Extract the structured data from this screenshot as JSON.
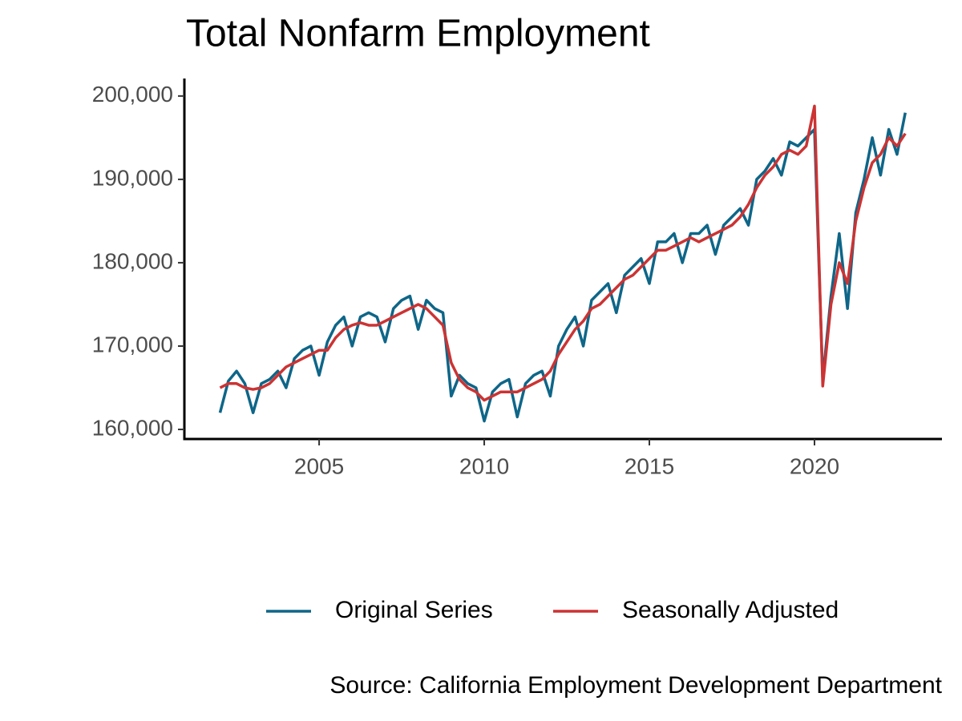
{
  "chart_data": {
    "type": "line",
    "title": "Total Nonfarm Employment",
    "caption": "Source: California Employment Development Department",
    "legend": "bottom",
    "xlim": [
      2000.92,
      2023.86
    ],
    "ylim": [
      158850,
      202100
    ],
    "xticks": [
      2005,
      2010,
      2015,
      2020
    ],
    "yticks": [
      {
        "value": 160000,
        "label": "160,000"
      },
      {
        "value": 170000,
        "label": "170,000"
      },
      {
        "value": 180000,
        "label": "180,000"
      },
      {
        "value": 190000,
        "label": "190,000"
      },
      {
        "value": 200000,
        "label": "200,000"
      }
    ],
    "x": [
      2002,
      2002.25,
      2002.5,
      2002.75,
      2003,
      2003.25,
      2003.5,
      2003.75,
      2004,
      2004.25,
      2004.5,
      2004.75,
      2005,
      2005.25,
      2005.5,
      2005.75,
      2006,
      2006.25,
      2006.5,
      2006.75,
      2007,
      2007.25,
      2007.5,
      2007.75,
      2008,
      2008.25,
      2008.5,
      2008.75,
      2009,
      2009.25,
      2009.5,
      2009.75,
      2010,
      2010.25,
      2010.5,
      2010.75,
      2011,
      2011.25,
      2011.5,
      2011.75,
      2012,
      2012.25,
      2012.5,
      2012.75,
      2013,
      2013.25,
      2013.5,
      2013.75,
      2014,
      2014.25,
      2014.5,
      2014.75,
      2015,
      2015.25,
      2015.5,
      2015.75,
      2016,
      2016.25,
      2016.5,
      2016.75,
      2017,
      2017.25,
      2017.5,
      2017.75,
      2018,
      2018.25,
      2018.5,
      2018.75,
      2019,
      2019.25,
      2019.5,
      2019.75,
      2020,
      2020.25,
      2020.5,
      2020.75,
      2021,
      2021.25,
      2021.5,
      2021.75,
      2022,
      2022.25,
      2022.5,
      2022.75
    ],
    "series": [
      {
        "name": "Original Series",
        "color": "#0e6688",
        "values": [
          162000,
          165800,
          167000,
          165500,
          162000,
          165500,
          166000,
          167000,
          165000,
          168500,
          169500,
          170000,
          166500,
          170500,
          172500,
          173500,
          170000,
          173500,
          174000,
          173500,
          170500,
          174500,
          175500,
          176000,
          172000,
          175500,
          174500,
          174000,
          164000,
          166500,
          165500,
          165000,
          161000,
          164500,
          165500,
          166000,
          161500,
          165500,
          166500,
          167000,
          164000,
          170000,
          172000,
          173500,
          170000,
          175500,
          176500,
          177500,
          174000,
          178500,
          179500,
          180500,
          177500,
          182500,
          182500,
          183500,
          180000,
          183500,
          183500,
          184500,
          181000,
          184500,
          185500,
          186500,
          184500,
          190000,
          191000,
          192500,
          190500,
          194500,
          194000,
          195000,
          196000,
          166000,
          176000,
          183500,
          174500,
          186000,
          190000,
          195000,
          190500,
          196000,
          193000,
          198000
        ]
      },
      {
        "name": "Seasonally Adjusted",
        "color": "#cc3333",
        "values": [
          165000,
          165500,
          165500,
          165000,
          164800,
          165000,
          165500,
          166500,
          167500,
          168000,
          168500,
          169000,
          169500,
          169500,
          171000,
          172000,
          172500,
          172800,
          172500,
          172500,
          173000,
          173500,
          174000,
          174500,
          175000,
          174500,
          173500,
          172500,
          168000,
          166000,
          165000,
          164500,
          163500,
          164000,
          164500,
          164500,
          164500,
          165000,
          165500,
          166000,
          167000,
          169000,
          170500,
          172000,
          173000,
          174500,
          175000,
          176000,
          177000,
          178000,
          178500,
          179500,
          180500,
          181500,
          181500,
          182000,
          182500,
          183000,
          182500,
          183000,
          183500,
          184000,
          184500,
          185500,
          187000,
          189000,
          190500,
          191500,
          193000,
          193500,
          193000,
          194000,
          198800,
          165200,
          175000,
          180000,
          177500,
          185000,
          189000,
          192000,
          193000,
          195000,
          194000,
          195500
        ]
      }
    ]
  }
}
